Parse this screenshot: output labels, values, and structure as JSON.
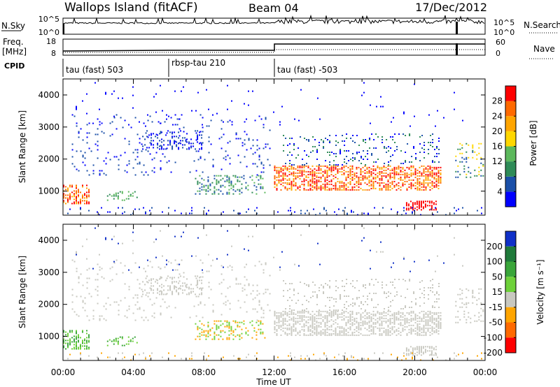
{
  "header": {
    "station": "Wallops Island (fitACF)",
    "beam": "Beam 04",
    "date": "17/Dec/2012"
  },
  "strips": {
    "nsky_label": "N.Sky",
    "nsky_ticks": [
      "10^5",
      "10^0"
    ],
    "nsearch_label": "N.Search",
    "nsearch_ticks": [
      "10^5",
      "10^0"
    ],
    "freq_label": "Freq.",
    "freq_unit": "[MHz]",
    "freq_ticks": [
      "18",
      "8"
    ],
    "nave_label": "Nave",
    "nave_ticks": [
      "60",
      "0"
    ],
    "cpid_label": "CPID",
    "cpid_segments": [
      {
        "label": "tau (fast) 503",
        "start_hour": 0
      },
      {
        "label": "rbsp-tau 210",
        "start_hour": 6
      },
      {
        "label": "tau (fast) -503",
        "start_hour": 12
      }
    ]
  },
  "colors": {
    "power_scale": [
      "#0000ff",
      "#1a4fa8",
      "#2e8b57",
      "#5cb85c",
      "#ffd700",
      "#ffa500",
      "#ff6a00",
      "#ff0000"
    ],
    "velocity_scale": [
      "#1030c8",
      "#1f7a3a",
      "#3aa63a",
      "#6ed13a",
      "#c8c8c0",
      "#ffa500",
      "#ff6a00",
      "#ff0000"
    ]
  },
  "chart_data": [
    {
      "type": "heatmap",
      "name": "power",
      "ylabel": "Slant Range [km]",
      "yticks": [
        "1000",
        "2000",
        "3000",
        "4000"
      ],
      "ylim": [
        250,
        4500
      ],
      "xlim": [
        0,
        24
      ],
      "colorbar_label": "Power [dB]",
      "colorbar_ticks": [
        "4",
        "8",
        "12",
        "16",
        "20",
        "24",
        "28"
      ],
      "colorbar_range": [
        0,
        32
      ]
    },
    {
      "type": "heatmap",
      "name": "velocity",
      "ylabel": "Slant Range [km]",
      "yticks": [
        "1000",
        "2000",
        "3000",
        "4000"
      ],
      "ylim": [
        250,
        4500
      ],
      "xlim": [
        0,
        24
      ],
      "colorbar_label": "Velocity [m s⁻¹]",
      "colorbar_ticks": [
        "200",
        "100",
        "50",
        "15",
        "-15",
        "-50",
        "-100",
        "-200"
      ],
      "xlabel": "Time UT",
      "xticks": [
        "00:00",
        "04:00",
        "08:00",
        "12:00",
        "16:00",
        "20:00",
        "00:00"
      ]
    }
  ]
}
